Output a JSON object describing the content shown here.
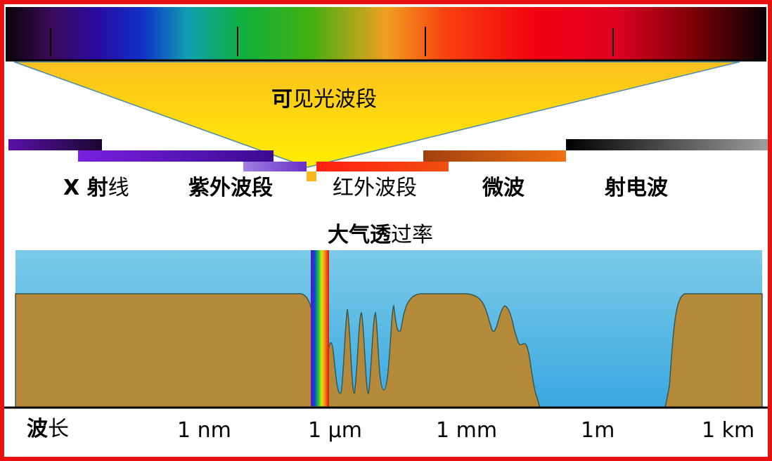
{
  "diagram": {
    "visible_band": {
      "bold": "可",
      "rest": "见光波段"
    },
    "atmo_title": {
      "bold": "大气透",
      "rest": "过率"
    },
    "bands": [
      {
        "id": "xray",
        "bold": "X 射",
        "rest": "线",
        "color": "#4a0a8c"
      },
      {
        "id": "uv",
        "bold": "紫外波段",
        "rest": "",
        "color": "#6a14c8"
      },
      {
        "id": "ir",
        "bold": "",
        "rest": "红外波段",
        "color": "#f04010"
      },
      {
        "id": "microwave",
        "bold": "微波",
        "rest": "",
        "color": "#d06010"
      },
      {
        "id": "radio",
        "bold": "射电波",
        "rest": "",
        "color": "#202020"
      }
    ],
    "axis": {
      "label": {
        "bold": "波",
        "rest": "长"
      },
      "ticks": [
        "1 nm",
        "1 μm",
        "1 mm",
        "1m",
        "1 km"
      ]
    },
    "colors": {
      "frame": "#e81010",
      "sky": "#5ab8e0",
      "ground": "#b5893a",
      "triangle": "#ffe000"
    }
  }
}
